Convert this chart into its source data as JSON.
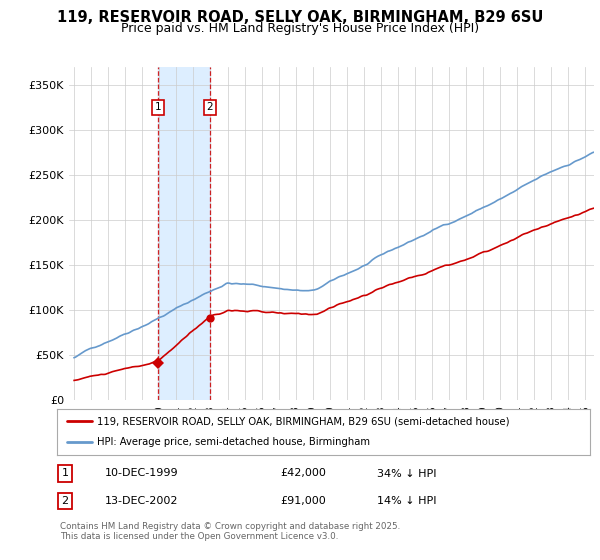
{
  "title": "119, RESERVOIR ROAD, SELLY OAK, BIRMINGHAM, B29 6SU",
  "subtitle": "Price paid vs. HM Land Registry's House Price Index (HPI)",
  "ylabel_ticks": [
    "£0",
    "£50K",
    "£100K",
    "£150K",
    "£200K",
    "£250K",
    "£300K",
    "£350K"
  ],
  "yvalues": [
    0,
    50000,
    100000,
    150000,
    200000,
    250000,
    300000,
    350000
  ],
  "ylim": [
    0,
    370000
  ],
  "xlim_start": 1994.7,
  "xlim_end": 2025.5,
  "sale1_date": 1999.94,
  "sale1_price": 42000,
  "sale1_label": "1",
  "sale2_date": 2002.95,
  "sale2_price": 91000,
  "sale2_label": "2",
  "red_color": "#cc0000",
  "blue_color": "#6699cc",
  "shade_color": "#ddeeff",
  "grid_color": "#cccccc",
  "background_color": "#ffffff",
  "legend_line1": "119, RESERVOIR ROAD, SELLY OAK, BIRMINGHAM, B29 6SU (semi-detached house)",
  "legend_line2": "HPI: Average price, semi-detached house, Birmingham",
  "table_row1_num": "1",
  "table_row1_date": "10-DEC-1999",
  "table_row1_price": "£42,000",
  "table_row1_hpi": "34% ↓ HPI",
  "table_row2_num": "2",
  "table_row2_date": "13-DEC-2002",
  "table_row2_price": "£91,000",
  "table_row2_hpi": "14% ↓ HPI",
  "footnote": "Contains HM Land Registry data © Crown copyright and database right 2025.\nThis data is licensed under the Open Government Licence v3.0.",
  "title_fontsize": 10.5,
  "subtitle_fontsize": 9
}
